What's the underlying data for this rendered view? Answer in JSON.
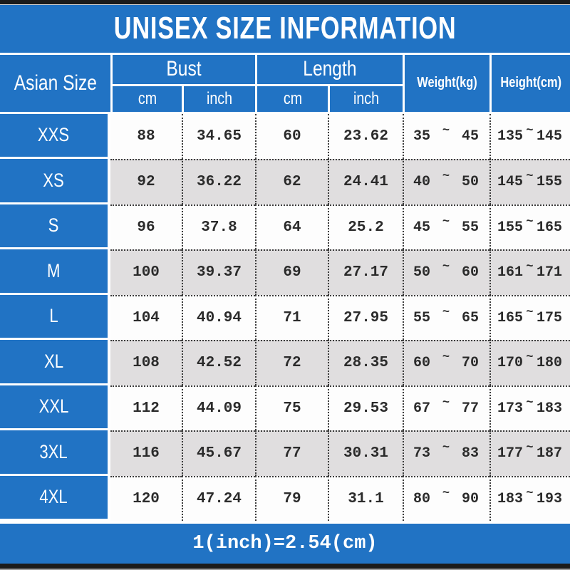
{
  "title": "UNISEX SIZE INFORMATION",
  "footer_note": "1(inch)=2.54(cm)",
  "colors": {
    "blue": "#2173c4",
    "row_alt": "#e0dedf",
    "row_base": "#fdfdfd",
    "bar_black": "#1b1b1b",
    "text_dark": "#2b2b2b"
  },
  "table": {
    "corner_header": "Asian Size",
    "tilde": "~",
    "groups": [
      {
        "label": "Bust",
        "subs": [
          "cm",
          "inch"
        ]
      },
      {
        "label": "Length",
        "subs": [
          "cm",
          "inch"
        ]
      }
    ],
    "spanned_headers": [
      "Weight(kg)",
      "Height(cm)"
    ],
    "rows": [
      {
        "size": "XXS",
        "bust_cm": "88",
        "bust_inch": "34.65",
        "length_cm": "60",
        "length_inch": "23.62",
        "weight_min": "35",
        "weight_max": "45",
        "height_min": "135",
        "height_max": "145"
      },
      {
        "size": "XS",
        "bust_cm": "92",
        "bust_inch": "36.22",
        "length_cm": "62",
        "length_inch": "24.41",
        "weight_min": "40",
        "weight_max": "50",
        "height_min": "145",
        "height_max": "155"
      },
      {
        "size": "S",
        "bust_cm": "96",
        "bust_inch": "37.8",
        "length_cm": "64",
        "length_inch": "25.2",
        "weight_min": "45",
        "weight_max": "55",
        "height_min": "155",
        "height_max": "165"
      },
      {
        "size": "M",
        "bust_cm": "100",
        "bust_inch": "39.37",
        "length_cm": "69",
        "length_inch": "27.17",
        "weight_min": "50",
        "weight_max": "60",
        "height_min": "161",
        "height_max": "171"
      },
      {
        "size": "L",
        "bust_cm": "104",
        "bust_inch": "40.94",
        "length_cm": "71",
        "length_inch": "27.95",
        "weight_min": "55",
        "weight_max": "65",
        "height_min": "165",
        "height_max": "175"
      },
      {
        "size": "XL",
        "bust_cm": "108",
        "bust_inch": "42.52",
        "length_cm": "72",
        "length_inch": "28.35",
        "weight_min": "60",
        "weight_max": "70",
        "height_min": "170",
        "height_max": "180"
      },
      {
        "size": "XXL",
        "bust_cm": "112",
        "bust_inch": "44.09",
        "length_cm": "75",
        "length_inch": "29.53",
        "weight_min": "67",
        "weight_max": "77",
        "height_min": "173",
        "height_max": "183"
      },
      {
        "size": "3XL",
        "bust_cm": "116",
        "bust_inch": "45.67",
        "length_cm": "77",
        "length_inch": "30.31",
        "weight_min": "73",
        "weight_max": "83",
        "height_min": "177",
        "height_max": "187"
      },
      {
        "size": "4XL",
        "bust_cm": "120",
        "bust_inch": "47.24",
        "length_cm": "79",
        "length_inch": "31.1",
        "weight_min": "80",
        "weight_max": "90",
        "height_min": "183",
        "height_max": "193"
      }
    ]
  },
  "chart_data": {
    "type": "table",
    "title": "UNISEX SIZE INFORMATION",
    "columns": [
      "Asian Size",
      "Bust cm",
      "Bust inch",
      "Length cm",
      "Length inch",
      "Weight(kg)",
      "Height(cm)"
    ],
    "rows": [
      [
        "XXS",
        88,
        34.65,
        60,
        23.62,
        "35~45",
        "135~145"
      ],
      [
        "XS",
        92,
        36.22,
        62,
        24.41,
        "40~50",
        "145~155"
      ],
      [
        "S",
        96,
        37.8,
        64,
        25.2,
        "45~55",
        "155~165"
      ],
      [
        "M",
        100,
        39.37,
        69,
        27.17,
        "50~60",
        "161~171"
      ],
      [
        "L",
        104,
        40.94,
        71,
        27.95,
        "55~65",
        "165~175"
      ],
      [
        "XL",
        108,
        42.52,
        72,
        28.35,
        "60~70",
        "170~180"
      ],
      [
        "XXL",
        112,
        44.09,
        75,
        29.53,
        "67~77",
        "173~183"
      ],
      [
        "3XL",
        116,
        45.67,
        77,
        30.31,
        "73~83",
        "177~187"
      ],
      [
        "4XL",
        120,
        47.24,
        79,
        31.1,
        "80~90",
        "183~193"
      ]
    ],
    "note": "1(inch)=2.54(cm)",
    "layout": {
      "title_position": "top",
      "note_position": "bottom",
      "header_groups": true
    }
  }
}
